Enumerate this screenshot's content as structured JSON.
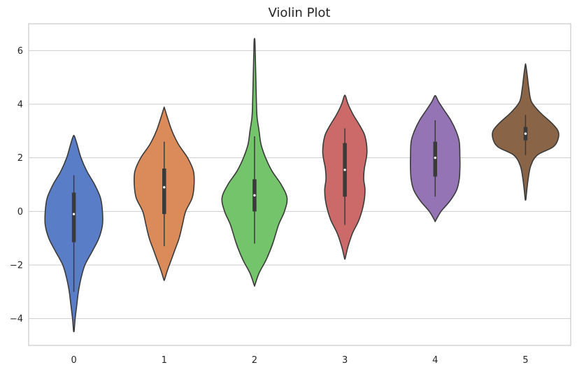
{
  "chart_data": {
    "type": "violin",
    "title": "Violin Plot",
    "xlabel": "",
    "ylabel": "",
    "ylim": [
      -5,
      7
    ],
    "yticks": [
      -4,
      -2,
      0,
      2,
      4,
      6
    ],
    "ytick_labels": [
      "−4",
      "−2",
      "0",
      "2",
      "4",
      "6"
    ],
    "grid": "horizontal",
    "categories": [
      "0",
      "1",
      "2",
      "3",
      "4",
      "5"
    ],
    "colors": [
      "#5a7dc8",
      "#db8a5a",
      "#74c46c",
      "#cc6a6a",
      "#9474b4",
      "#8a6446"
    ],
    "series": [
      {
        "min": -3.0,
        "q1": -1.15,
        "median": -0.1,
        "q3": 0.7,
        "max": 1.35,
        "density": [
          [
            -4.45,
            0.01
          ],
          [
            -4.0,
            0.04
          ],
          [
            -3.5,
            0.09
          ],
          [
            -3.0,
            0.14
          ],
          [
            -2.5,
            0.22
          ],
          [
            -2.0,
            0.34
          ],
          [
            -1.5,
            0.56
          ],
          [
            -1.0,
            0.77
          ],
          [
            -0.5,
            0.88
          ],
          [
            0.0,
            0.88
          ],
          [
            0.5,
            0.82
          ],
          [
            1.0,
            0.64
          ],
          [
            1.5,
            0.4
          ],
          [
            2.0,
            0.22
          ],
          [
            2.5,
            0.1
          ],
          [
            2.8,
            0.02
          ]
        ]
      },
      {
        "min": -1.3,
        "q1": -0.1,
        "median": 0.9,
        "q3": 1.6,
        "max": 2.6,
        "density": [
          [
            -2.55,
            0.01
          ],
          [
            -2.2,
            0.1
          ],
          [
            -1.8,
            0.22
          ],
          [
            -1.4,
            0.34
          ],
          [
            -1.0,
            0.46
          ],
          [
            -0.5,
            0.56
          ],
          [
            0.0,
            0.66
          ],
          [
            0.5,
            0.86
          ],
          [
            1.0,
            0.92
          ],
          [
            1.5,
            0.9
          ],
          [
            2.0,
            0.72
          ],
          [
            2.5,
            0.44
          ],
          [
            3.0,
            0.24
          ],
          [
            3.5,
            0.1
          ],
          [
            3.85,
            0.01
          ]
        ]
      },
      {
        "min": -1.2,
        "q1": 0.0,
        "median": 0.6,
        "q3": 1.2,
        "max": 2.8,
        "density": [
          [
            -2.75,
            0.01
          ],
          [
            -2.3,
            0.14
          ],
          [
            -1.8,
            0.36
          ],
          [
            -1.2,
            0.56
          ],
          [
            -0.5,
            0.74
          ],
          [
            0.0,
            0.92
          ],
          [
            0.5,
            1.0
          ],
          [
            1.0,
            0.82
          ],
          [
            1.5,
            0.54
          ],
          [
            2.0,
            0.34
          ],
          [
            2.5,
            0.2
          ],
          [
            3.0,
            0.14
          ],
          [
            3.5,
            0.08
          ],
          [
            4.0,
            0.06
          ],
          [
            5.0,
            0.04
          ],
          [
            6.0,
            0.02
          ],
          [
            6.4,
            0.01
          ]
        ]
      },
      {
        "min": -0.5,
        "q1": 0.55,
        "median": 1.55,
        "q3": 2.55,
        "max": 3.1,
        "density": [
          [
            -1.75,
            0.01
          ],
          [
            -1.3,
            0.1
          ],
          [
            -0.8,
            0.24
          ],
          [
            -0.3,
            0.44
          ],
          [
            0.3,
            0.58
          ],
          [
            0.8,
            0.62
          ],
          [
            1.2,
            0.58
          ],
          [
            1.6,
            0.6
          ],
          [
            2.2,
            0.68
          ],
          [
            2.8,
            0.62
          ],
          [
            3.2,
            0.46
          ],
          [
            3.6,
            0.26
          ],
          [
            4.0,
            0.1
          ],
          [
            4.3,
            0.02
          ]
        ]
      },
      {
        "min": 0.55,
        "q1": 1.3,
        "median": 2.0,
        "q3": 2.6,
        "max": 3.4,
        "density": [
          [
            -0.35,
            0.01
          ],
          [
            0.0,
            0.18
          ],
          [
            0.4,
            0.46
          ],
          [
            0.8,
            0.66
          ],
          [
            1.2,
            0.74
          ],
          [
            1.6,
            0.76
          ],
          [
            2.0,
            0.76
          ],
          [
            2.6,
            0.74
          ],
          [
            3.0,
            0.64
          ],
          [
            3.4,
            0.48
          ],
          [
            3.8,
            0.26
          ],
          [
            4.1,
            0.1
          ],
          [
            4.3,
            0.02
          ]
        ]
      },
      {
        "min": 2.1,
        "q1": 2.65,
        "median": 2.9,
        "q3": 3.15,
        "max": 3.6,
        "density": [
          [
            0.45,
            0.01
          ],
          [
            0.8,
            0.04
          ],
          [
            1.2,
            0.08
          ],
          [
            1.7,
            0.16
          ],
          [
            2.1,
            0.36
          ],
          [
            2.4,
            0.84
          ],
          [
            2.7,
            1.0
          ],
          [
            3.0,
            1.0
          ],
          [
            3.3,
            0.8
          ],
          [
            3.7,
            0.44
          ],
          [
            4.1,
            0.18
          ],
          [
            4.6,
            0.1
          ],
          [
            5.0,
            0.06
          ],
          [
            5.45,
            0.01
          ]
        ]
      }
    ]
  }
}
